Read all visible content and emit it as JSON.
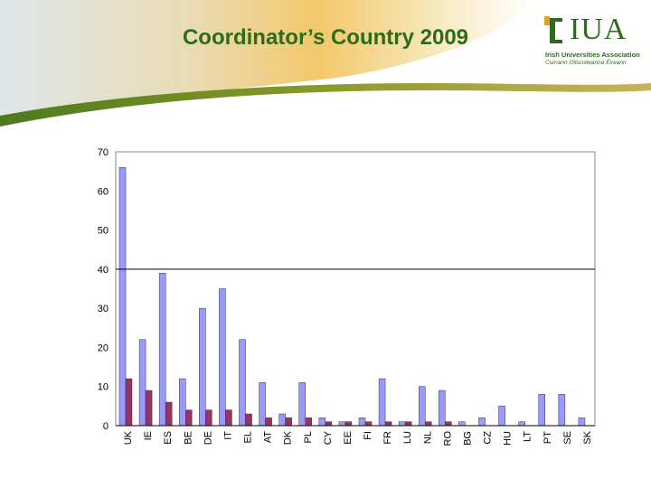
{
  "slide": {
    "title": "Coordinator’s Country 2009"
  },
  "logo": {
    "name": "IUA",
    "line1": "Irish Universities Association",
    "line2": "Cumann Ollscoileanna Éireann"
  },
  "colors": {
    "title": "#2e6b1c",
    "series1": "#9999ff",
    "series2": "#993366",
    "gridline": "#000000"
  },
  "chart_data": {
    "type": "bar",
    "categories": [
      "UK",
      "IE",
      "ES",
      "BE",
      "DE",
      "IT",
      "EL",
      "AT",
      "DK",
      "PL",
      "CY",
      "EE",
      "FI",
      "FR",
      "LU",
      "NL",
      "RO",
      "BG",
      "CZ",
      "HU",
      "LT",
      "PT",
      "SE",
      "SK"
    ],
    "series": [
      {
        "values": [
          66,
          22,
          39,
          12,
          30,
          35,
          22,
          11,
          3,
          11,
          2,
          1,
          2,
          12,
          1,
          10,
          9,
          1,
          2,
          5,
          1,
          8,
          8,
          2
        ]
      },
      {
        "values": [
          12,
          9,
          6,
          4,
          4,
          4,
          3,
          2,
          2,
          2,
          1,
          1,
          1,
          1,
          1,
          1,
          1,
          0,
          0,
          0,
          0,
          0,
          0,
          0
        ]
      }
    ],
    "yticks": [
      "0",
      "10",
      "20",
      "30",
      "40",
      "50",
      "60",
      "70"
    ],
    "ylim": [
      0,
      70
    ],
    "reference_line": 40,
    "grid": false,
    "legend": "none"
  }
}
